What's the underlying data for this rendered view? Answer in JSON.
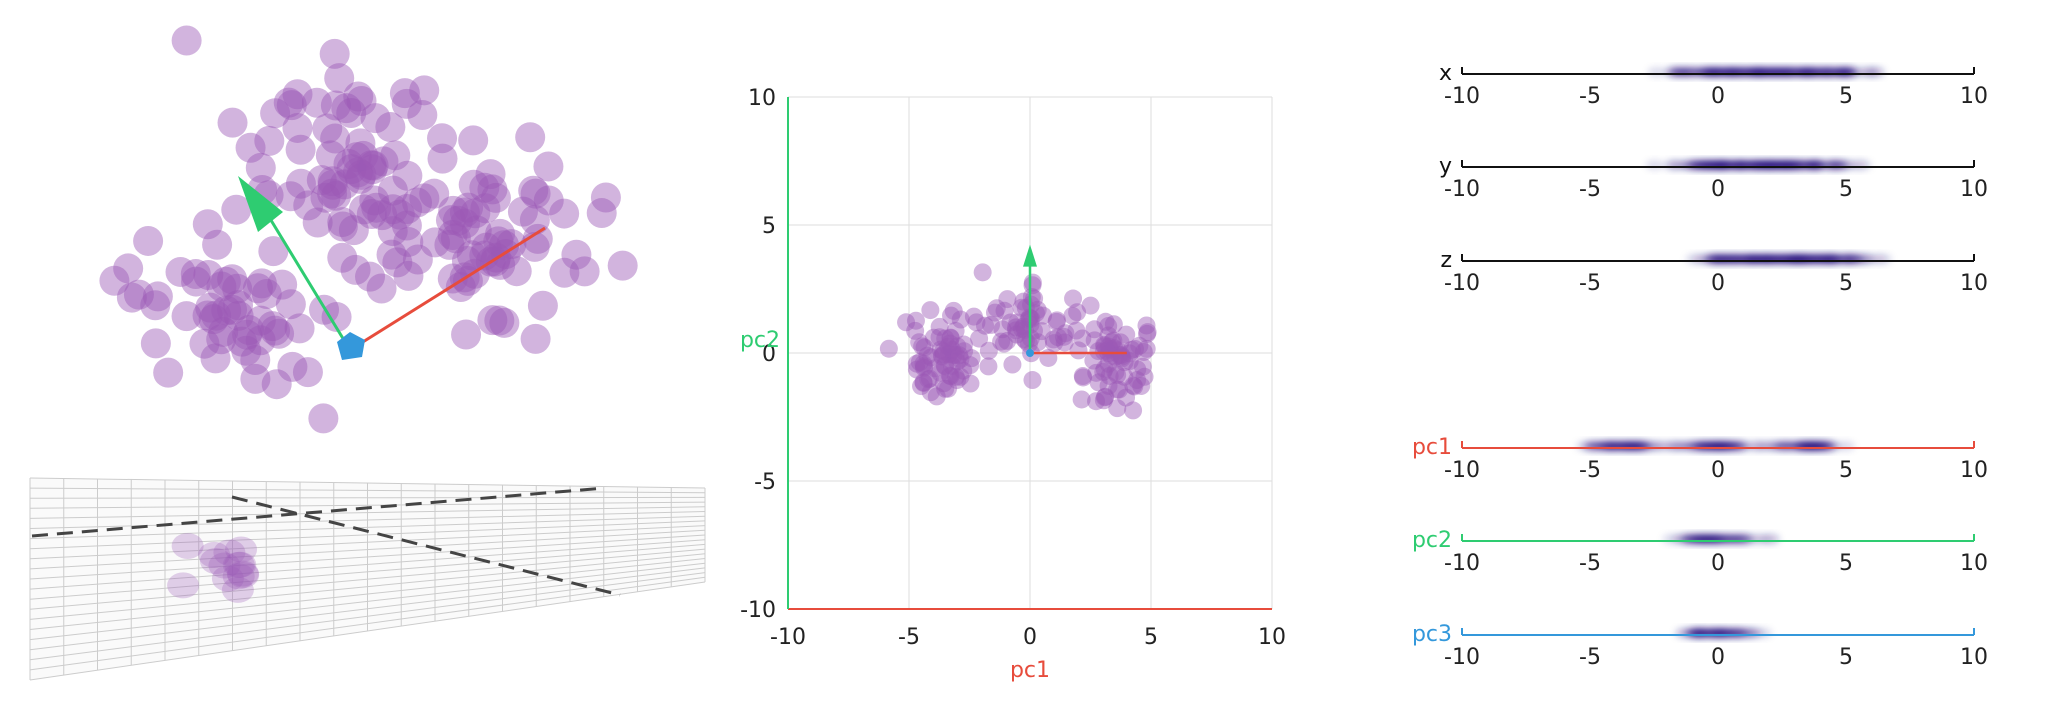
{
  "colors": {
    "point": "#9b59b6",
    "pc1": "#e74c3c",
    "pc2": "#2ecc71",
    "pc3": "#3498db",
    "axis": "#111111",
    "grid": "#dddddd",
    "density": "#1a0a7a"
  },
  "chart_data": [
    {
      "type": "scatter",
      "description_3d": "pca-3d-view",
      "dimensions": [
        "x",
        "y",
        "z"
      ],
      "mean": [
        1.9,
        1.6,
        2.5
      ],
      "clusters": [
        {
          "center": [
            -0.2,
            0.2,
            0.9
          ],
          "count": 60
        },
        {
          "center": [
            1.8,
            3.4,
            2.2
          ],
          "count": 70
        },
        {
          "center": [
            3.8,
            1.4,
            4.3
          ],
          "count": 70
        }
      ],
      "arrows": [
        {
          "name": "pc1",
          "color": "#e74c3c"
        },
        {
          "name": "pc2",
          "color": "#2ecc71"
        }
      ]
    },
    {
      "type": "scatter",
      "xlabel": "pc1",
      "ylabel": "pc2",
      "xlim": [
        -10,
        10
      ],
      "ylim": [
        -10,
        10
      ],
      "xticks": [
        "-10",
        "-5",
        "0",
        "5",
        "10"
      ],
      "yticks": [
        "-10",
        "-5",
        "0",
        "5",
        "10"
      ],
      "grid": true,
      "clusters": [
        {
          "center": [
            -3.6,
            -0.2
          ],
          "spread": [
            0.9,
            0.7
          ],
          "count": 70
        },
        {
          "center": [
            0.0,
            1.0
          ],
          "spread": [
            1.1,
            0.7
          ],
          "count": 60
        },
        {
          "center": [
            3.4,
            -0.3
          ],
          "spread": [
            0.9,
            0.8
          ],
          "count": 70
        }
      ],
      "arrows": [
        {
          "name": "pc1",
          "x": 4.0,
          "y": 0.0
        },
        {
          "name": "pc2",
          "x": 0.0,
          "y": 4.0
        }
      ]
    },
    {
      "type": "area",
      "axis_range": [
        -10,
        10
      ],
      "ticks": [
        "-10",
        "-5",
        "0",
        "5",
        "10"
      ],
      "strips": [
        {
          "label": "x",
          "color": "#111111",
          "clusters": [
            -0.1,
            1.9,
            3.8
          ],
          "spread": 1.0
        },
        {
          "label": "y",
          "color": "#111111",
          "clusters": [
            0.0,
            1.7,
            3.4
          ],
          "spread": 0.9
        },
        {
          "label": "z",
          "color": "#111111",
          "clusters": [
            0.9,
            2.5,
            4.3
          ],
          "spread": 0.9
        },
        {
          "label": "pc1",
          "color": "#e74c3c",
          "clusters": [
            -3.6,
            0.0,
            3.4
          ],
          "spread": 0.7
        },
        {
          "label": "pc2",
          "color": "#2ecc71",
          "clusters": [
            0.0
          ],
          "spread": 0.9
        },
        {
          "label": "pc3",
          "color": "#3498db",
          "clusters": [
            0.0
          ],
          "spread": 0.7
        }
      ]
    }
  ]
}
